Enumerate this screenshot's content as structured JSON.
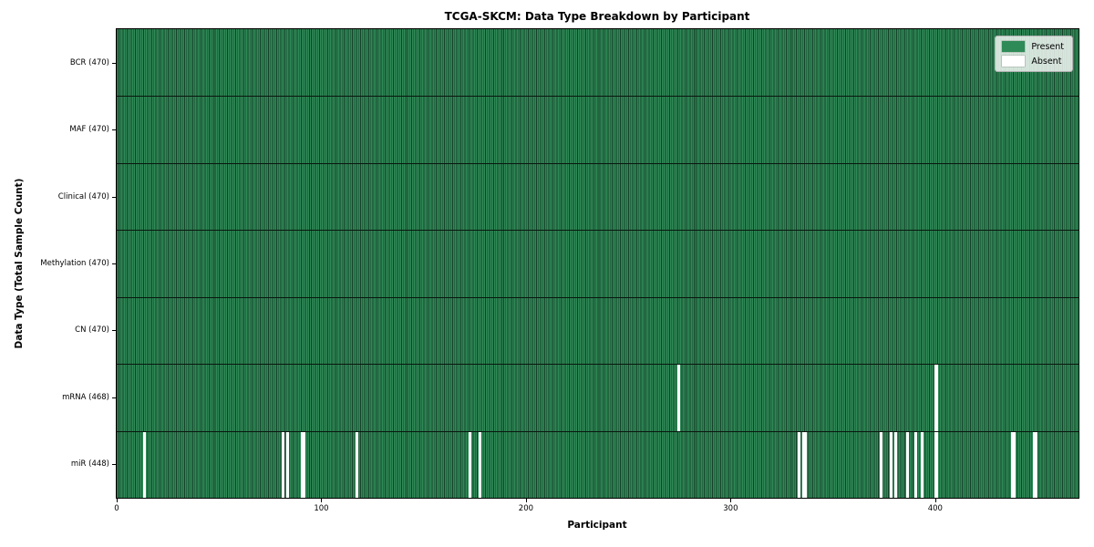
{
  "chart_data": {
    "type": "heatmap",
    "title": "TCGA-SKCM: Data Type Breakdown by Participant",
    "xlabel": "Participant",
    "ylabel": "Data Type (Total Sample Count)",
    "n_participants": 470,
    "x_ticks": [
      0,
      100,
      200,
      300,
      400
    ],
    "colors": {
      "present": "#2e8b57",
      "absent": "#ffffff",
      "cell_edge": "#16402a",
      "row_divider": "#0a160e"
    },
    "legend": [
      {
        "label": "Present",
        "color": "#2e8b57"
      },
      {
        "label": "Absent",
        "color": "#ffffff"
      }
    ],
    "rows": [
      {
        "label": "BCR (470)",
        "data_type": "BCR",
        "total_samples": 470,
        "absent_participants": []
      },
      {
        "label": "MAF (470)",
        "data_type": "MAF",
        "total_samples": 470,
        "absent_participants": []
      },
      {
        "label": "Clinical (470)",
        "data_type": "Clinical",
        "total_samples": 470,
        "absent_participants": []
      },
      {
        "label": "Methylation (470)",
        "data_type": "Methylation",
        "total_samples": 470,
        "absent_participants": []
      },
      {
        "label": "CN (470)",
        "data_type": "CN",
        "total_samples": 470,
        "absent_participants": []
      },
      {
        "label": "mRNA (468)",
        "data_type": "mRNA",
        "total_samples": 468,
        "absent_participants": [
          274,
          400
        ]
      },
      {
        "label": "miR (448)",
        "data_type": "miR",
        "total_samples": 448,
        "absent_participants": [
          13,
          81,
          83,
          90,
          91,
          117,
          172,
          177,
          333,
          335,
          336,
          373,
          378,
          380,
          386,
          390,
          393,
          400,
          437,
          438,
          448,
          449
        ]
      }
    ]
  }
}
